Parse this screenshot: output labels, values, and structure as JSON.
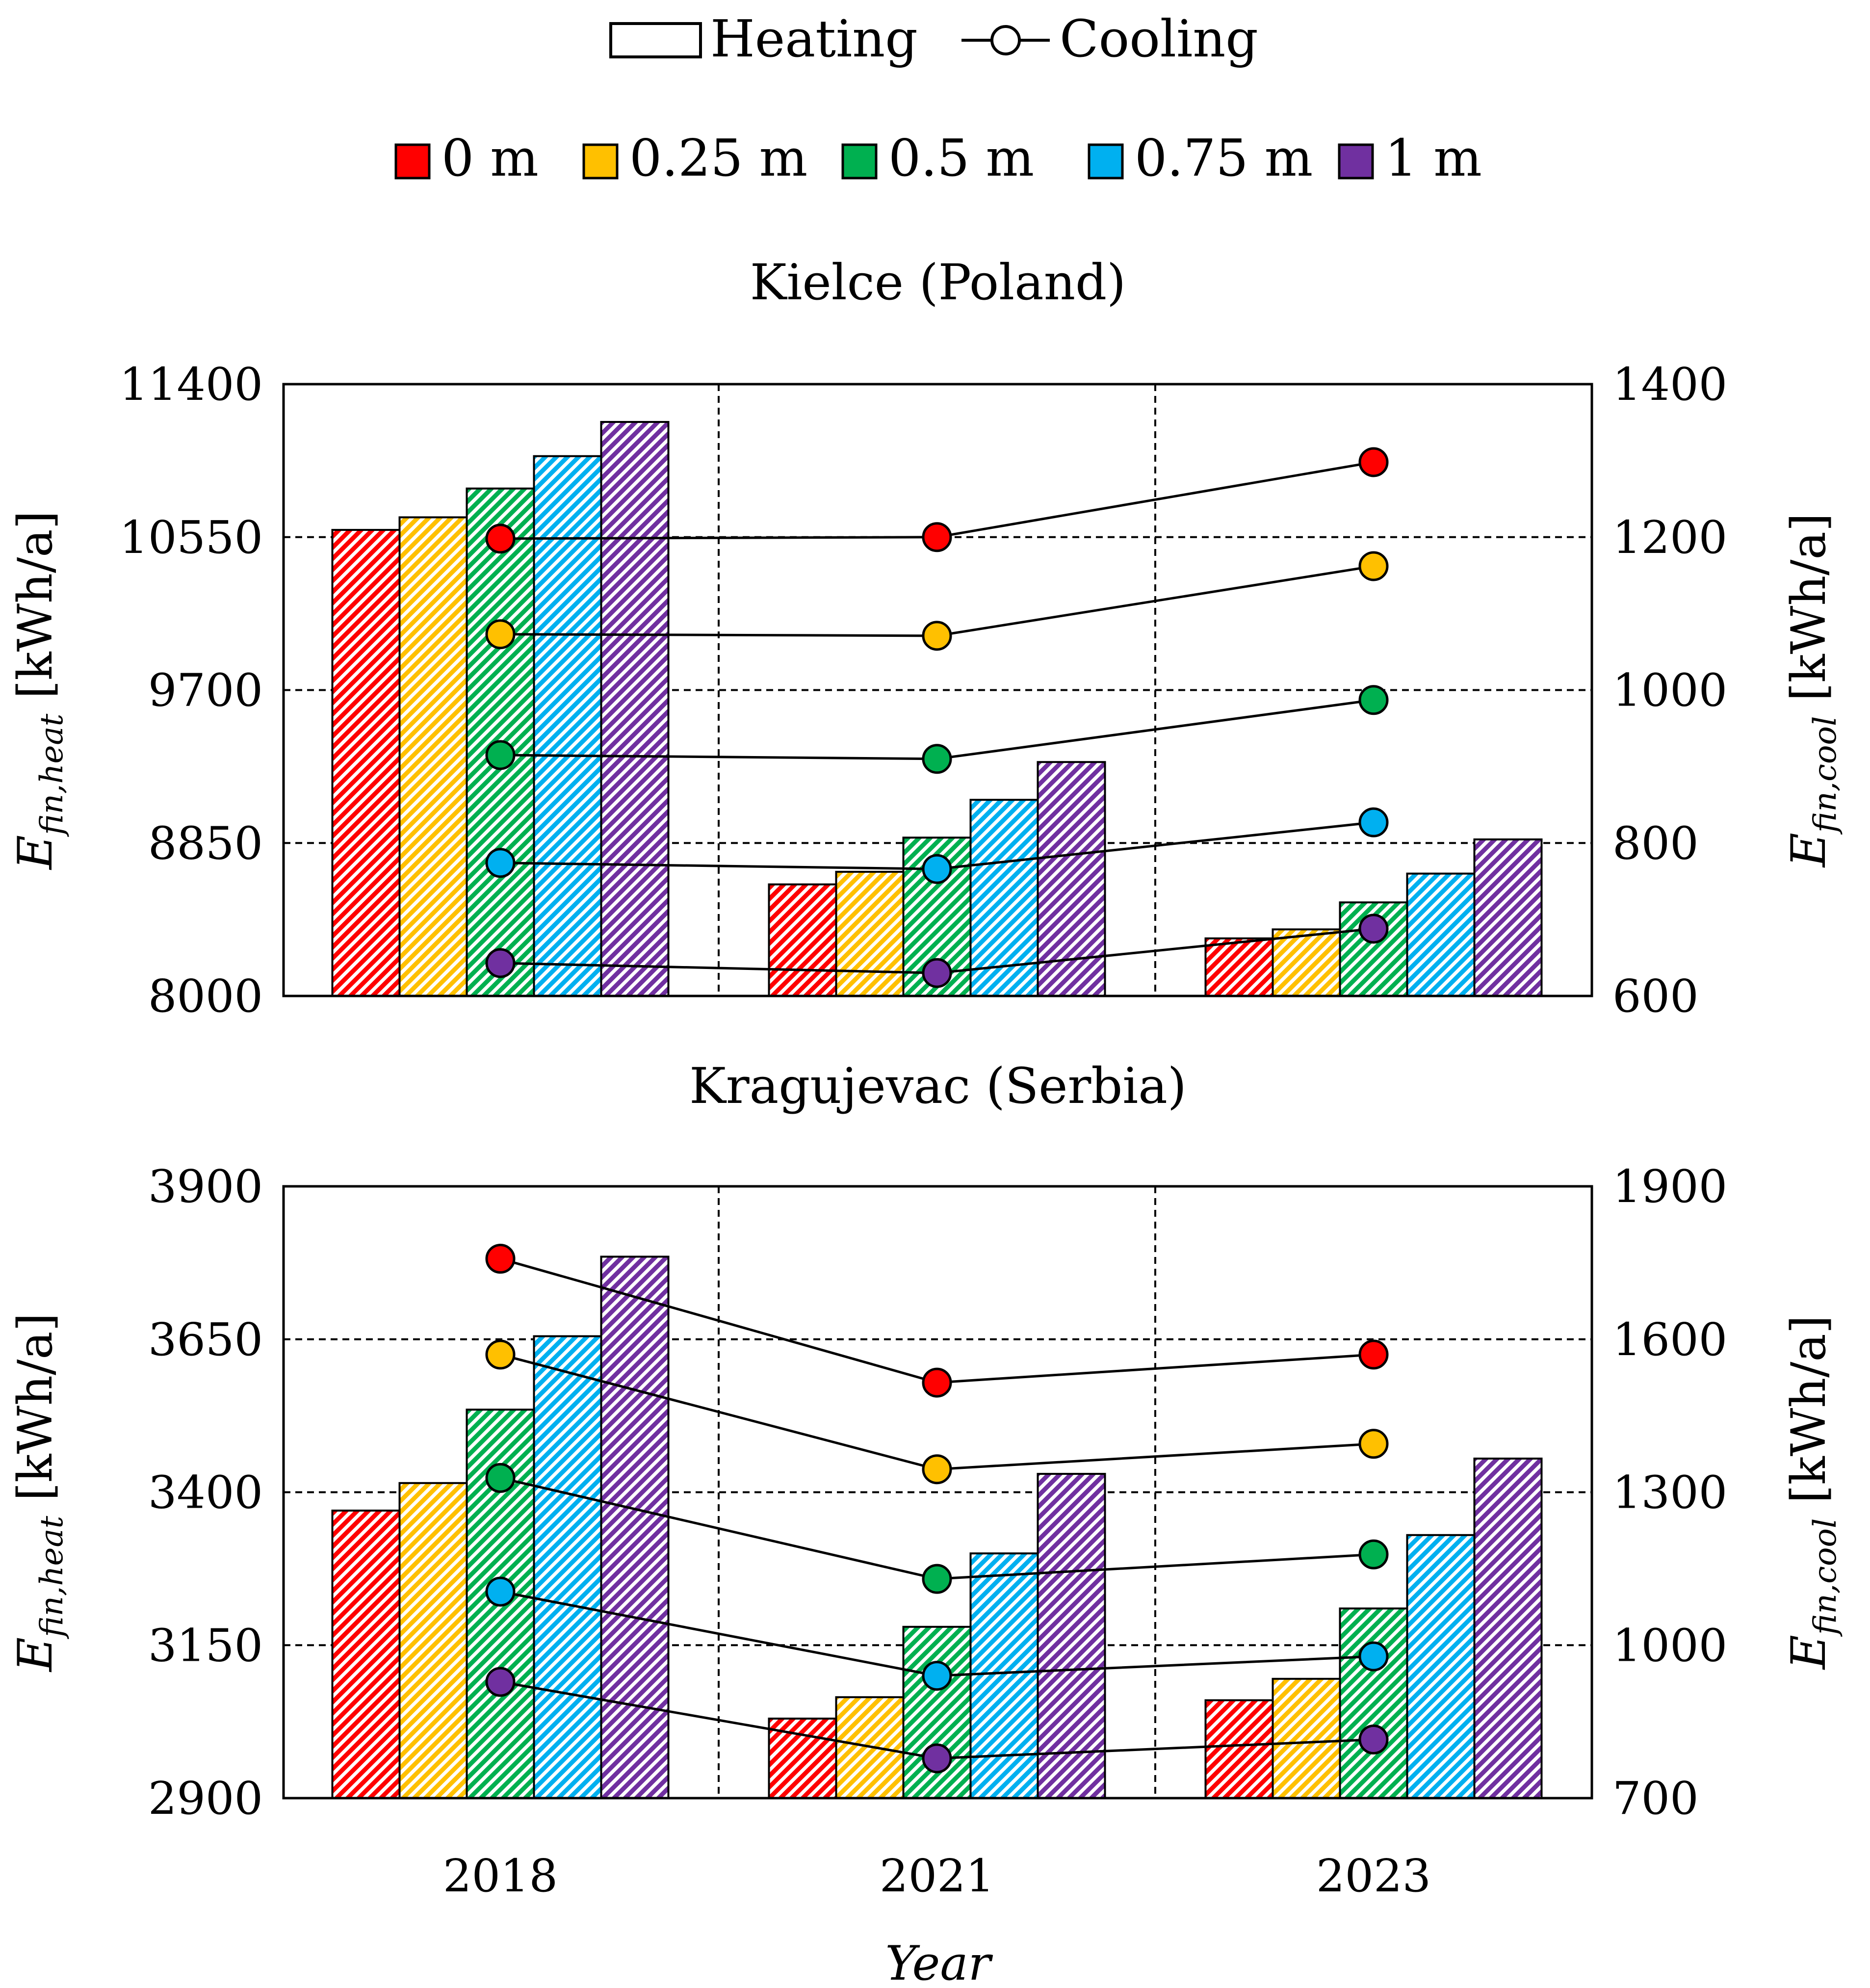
{
  "legend": {
    "heating_label": "Heating",
    "cooling_label": "Cooling",
    "series": [
      {
        "label": "0 m",
        "color": "#ff0000"
      },
      {
        "label": "0.25 m",
        "color": "#ffc000"
      },
      {
        "label": "0.5 m",
        "color": "#00b050"
      },
      {
        "label": "0.75 m",
        "color": "#00b0f0"
      },
      {
        "label": "1 m",
        "color": "#7030a0"
      }
    ]
  },
  "xlabel": "Year",
  "chart_data": [
    {
      "type": "bar",
      "title": "Kielce (Poland)",
      "categories": [
        "2018",
        "2021",
        "2023"
      ],
      "ylabel_left": {
        "main": "E",
        "sub": "fin,heat",
        "unit": "[kWh/a]"
      },
      "ylabel_right": {
        "main": "E",
        "sub": "fin,cool",
        "unit": "[kWh/a]"
      },
      "ylim_left": [
        8000,
        11400
      ],
      "yticks_left": [
        "8000",
        "8850",
        "9700",
        "10550",
        "11400"
      ],
      "ylim_right": [
        600,
        1400
      ],
      "yticks_right": [
        "600",
        "800",
        "1000",
        "1200",
        "1400"
      ],
      "heating": [
        {
          "name": "0 m",
          "values": [
            10590,
            8620,
            8320
          ]
        },
        {
          "name": "0.25 m",
          "values": [
            10660,
            8690,
            8370
          ]
        },
        {
          "name": "0.5 m",
          "values": [
            10820,
            8880,
            8520
          ]
        },
        {
          "name": "0.75 m",
          "values": [
            11000,
            9090,
            8680
          ]
        },
        {
          "name": "1 m",
          "values": [
            11190,
            9300,
            8870
          ]
        }
      ],
      "cooling": [
        {
          "name": "0 m",
          "values": [
            1198,
            1200,
            1298
          ]
        },
        {
          "name": "0.25 m",
          "values": [
            1073,
            1071,
            1162
          ]
        },
        {
          "name": "0.5 m",
          "values": [
            915,
            910,
            987
          ]
        },
        {
          "name": "0.75 m",
          "values": [
            774,
            766,
            827
          ]
        },
        {
          "name": "1 m",
          "values": [
            643,
            630,
            688
          ]
        }
      ]
    },
    {
      "type": "bar",
      "title": "Kragujevac (Serbia)",
      "categories": [
        "2018",
        "2021",
        "2023"
      ],
      "ylabel_left": {
        "main": "E",
        "sub": "fin,heat",
        "unit": "[kWh/a]"
      },
      "ylabel_right": {
        "main": "E",
        "sub": "fin,cool",
        "unit": "[kWh/a]"
      },
      "ylim_left": [
        2900,
        3900
      ],
      "yticks_left": [
        "2900",
        "3150",
        "3400",
        "3650",
        "3900"
      ],
      "ylim_right": [
        700,
        1900
      ],
      "yticks_right": [
        "700",
        "1000",
        "1300",
        "1600",
        "1900"
      ],
      "heating": [
        {
          "name": "0 m",
          "values": [
            3370,
            3030,
            3060
          ]
        },
        {
          "name": "0.25 m",
          "values": [
            3415,
            3065,
            3095
          ]
        },
        {
          "name": "0.5 m",
          "values": [
            3535,
            3180,
            3210
          ]
        },
        {
          "name": "0.75 m",
          "values": [
            3655,
            3300,
            3330
          ]
        },
        {
          "name": "1 m",
          "values": [
            3785,
            3430,
            3455
          ]
        }
      ],
      "cooling": [
        {
          "name": "0 m",
          "values": [
            1758,
            1515,
            1570
          ]
        },
        {
          "name": "0.25 m",
          "values": [
            1570,
            1345,
            1395
          ]
        },
        {
          "name": "0.5 m",
          "values": [
            1328,
            1130,
            1178
          ]
        },
        {
          "name": "0.75 m",
          "values": [
            1105,
            940,
            978
          ]
        },
        {
          "name": "1 m",
          "values": [
            928,
            778,
            815
          ]
        }
      ]
    }
  ]
}
